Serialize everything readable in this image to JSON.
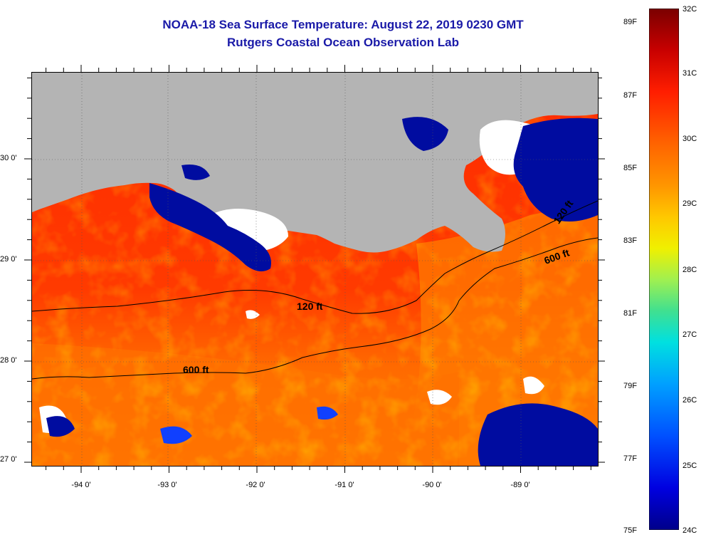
{
  "title": {
    "line1": "NOAA-18 Sea Surface Temperature:  August 22, 2019 0230 GMT",
    "line2": "Rutgers Coastal Ocean Observation Lab"
  },
  "map": {
    "latitude_labels": [
      "30 0'",
      "29 0'",
      "28 0'",
      "27 0'"
    ],
    "longitude_labels": [
      "-94 0'",
      "-93 0'",
      "-92 0'",
      "-91 0'",
      "-90 0'",
      "-89 0'"
    ],
    "contour_labels": [
      "120 ft",
      "600 ft",
      "120 ft",
      "600 ft"
    ],
    "colors": {
      "land": "#b4b4b4",
      "cloud": "#ffffff",
      "warm": "#ff3000",
      "cold": "#000ca0"
    }
  },
  "colorbar": {
    "fahrenheit_labels": [
      "89F",
      "87F",
      "85F",
      "83F",
      "81F",
      "79F",
      "77F",
      "75F"
    ],
    "celsius_labels": [
      "32C",
      "31C",
      "30C",
      "29C",
      "28C",
      "27C",
      "26C",
      "25C",
      "24C"
    ],
    "colors": [
      "#7a0000",
      "#c80000",
      "#ff1e00",
      "#ff6400",
      "#ff9600",
      "#ffc800",
      "#f0f000",
      "#a0f050",
      "#40e090",
      "#00e0e0",
      "#00a0ff",
      "#0050ff",
      "#0000e0",
      "#00008a"
    ]
  }
}
